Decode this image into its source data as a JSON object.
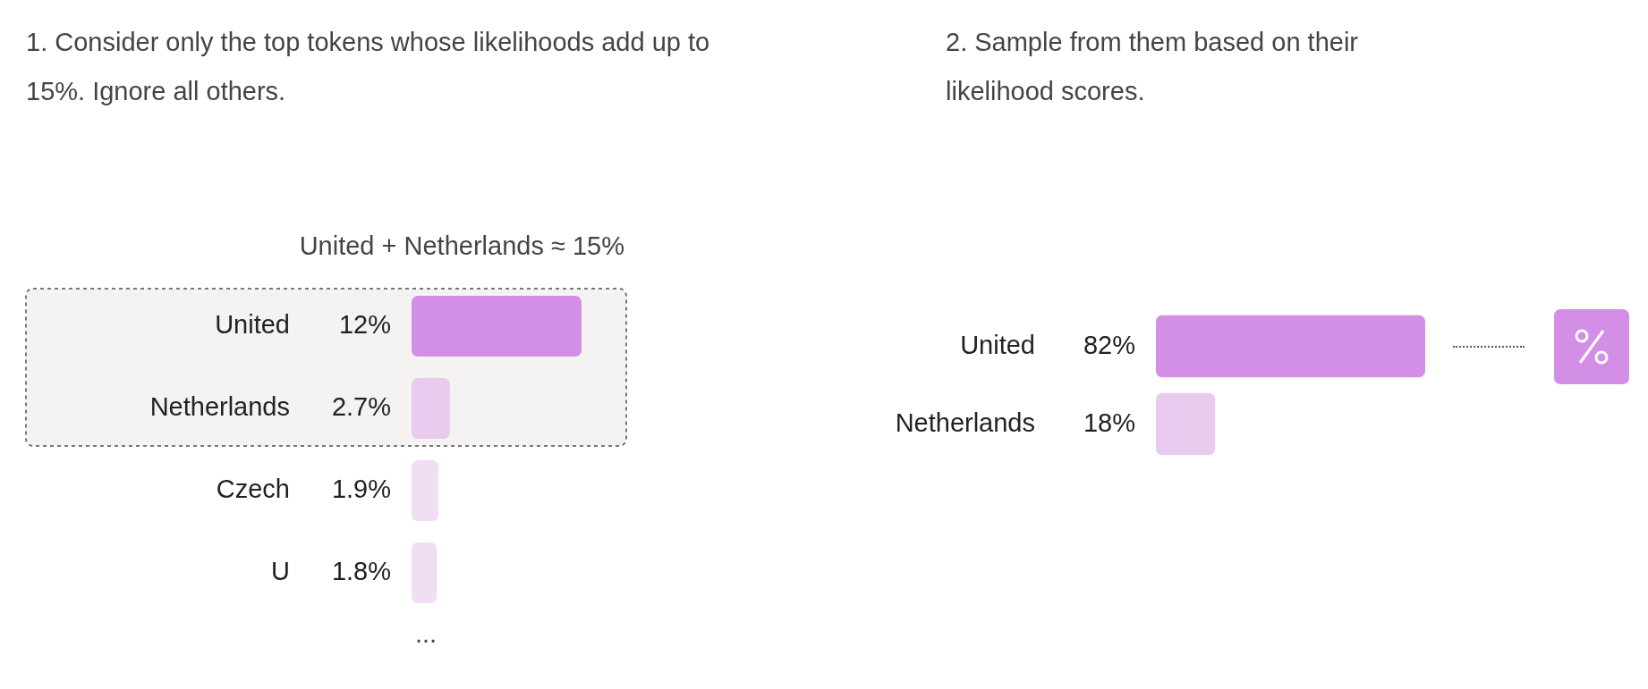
{
  "chart_data": [
    {
      "type": "bar",
      "orientation": "horizontal",
      "title": "1. Consider only the top tokens whose likelihoods add up to 15%. Ignore all others.",
      "categories": [
        "United",
        "Netherlands",
        "Czech",
        "U"
      ],
      "values": [
        12,
        2.7,
        1.9,
        1.8
      ],
      "value_labels": [
        "12%",
        "2.7%",
        "1.9%",
        "1.8%"
      ],
      "colors": [
        "#d38fe6",
        "#e9cbef",
        "#f1def5",
        "#f1def5"
      ],
      "bands": [
        {
          "axis": "y",
          "from": "United",
          "to": "Netherlands",
          "label": "United + Netherlands ≈ 15%",
          "color": "#f4f3f2"
        }
      ],
      "annotations": [
        "..."
      ]
    },
    {
      "type": "bar",
      "orientation": "horizontal",
      "title": "2. Sample from them based on their likelihood scores.",
      "categories": [
        "United",
        "Netherlands"
      ],
      "values": [
        82,
        18
      ],
      "value_labels": [
        "82%",
        "18%"
      ],
      "colors": [
        "#d38fe6",
        "#e9cbef"
      ]
    }
  ]
}
